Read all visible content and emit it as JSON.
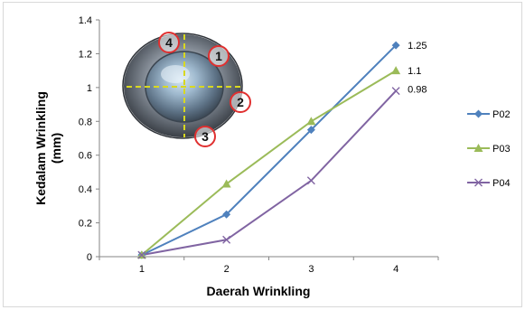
{
  "chart_data": {
    "type": "line",
    "xlabel": "Daerah Wrinkling",
    "ylabel_lines": [
      "Kedalam Wrinkling",
      "(mm)"
    ],
    "x": [
      1,
      2,
      3,
      4
    ],
    "x_ticks": [
      "1",
      "2",
      "3",
      "4"
    ],
    "ylim": [
      0,
      1.4
    ],
    "y_ticks": [
      "0",
      "0.2",
      "0.4",
      "0.6",
      "0.8",
      "1",
      "1.2",
      "1.4"
    ],
    "grid": false,
    "legend_position": "right",
    "series": [
      {
        "name": "P02",
        "values": [
          0.01,
          0.25,
          0.75,
          1.25
        ],
        "color": "#4f81bd",
        "marker": "diamond"
      },
      {
        "name": "P03",
        "values": [
          0.01,
          0.43,
          0.8,
          1.1
        ],
        "color": "#9bbb59",
        "marker": "triangle"
      },
      {
        "name": "P04",
        "values": [
          0.01,
          0.1,
          0.45,
          0.98
        ],
        "color": "#8064a2",
        "marker": "x"
      }
    ],
    "end_labels": [
      "1.25",
      "1.1",
      "0.98"
    ],
    "inset_photo": {
      "region_labels": [
        "1",
        "2",
        "3",
        "4"
      ],
      "badge_color": "#e03030",
      "crosshair_color": "#d8d820"
    }
  }
}
